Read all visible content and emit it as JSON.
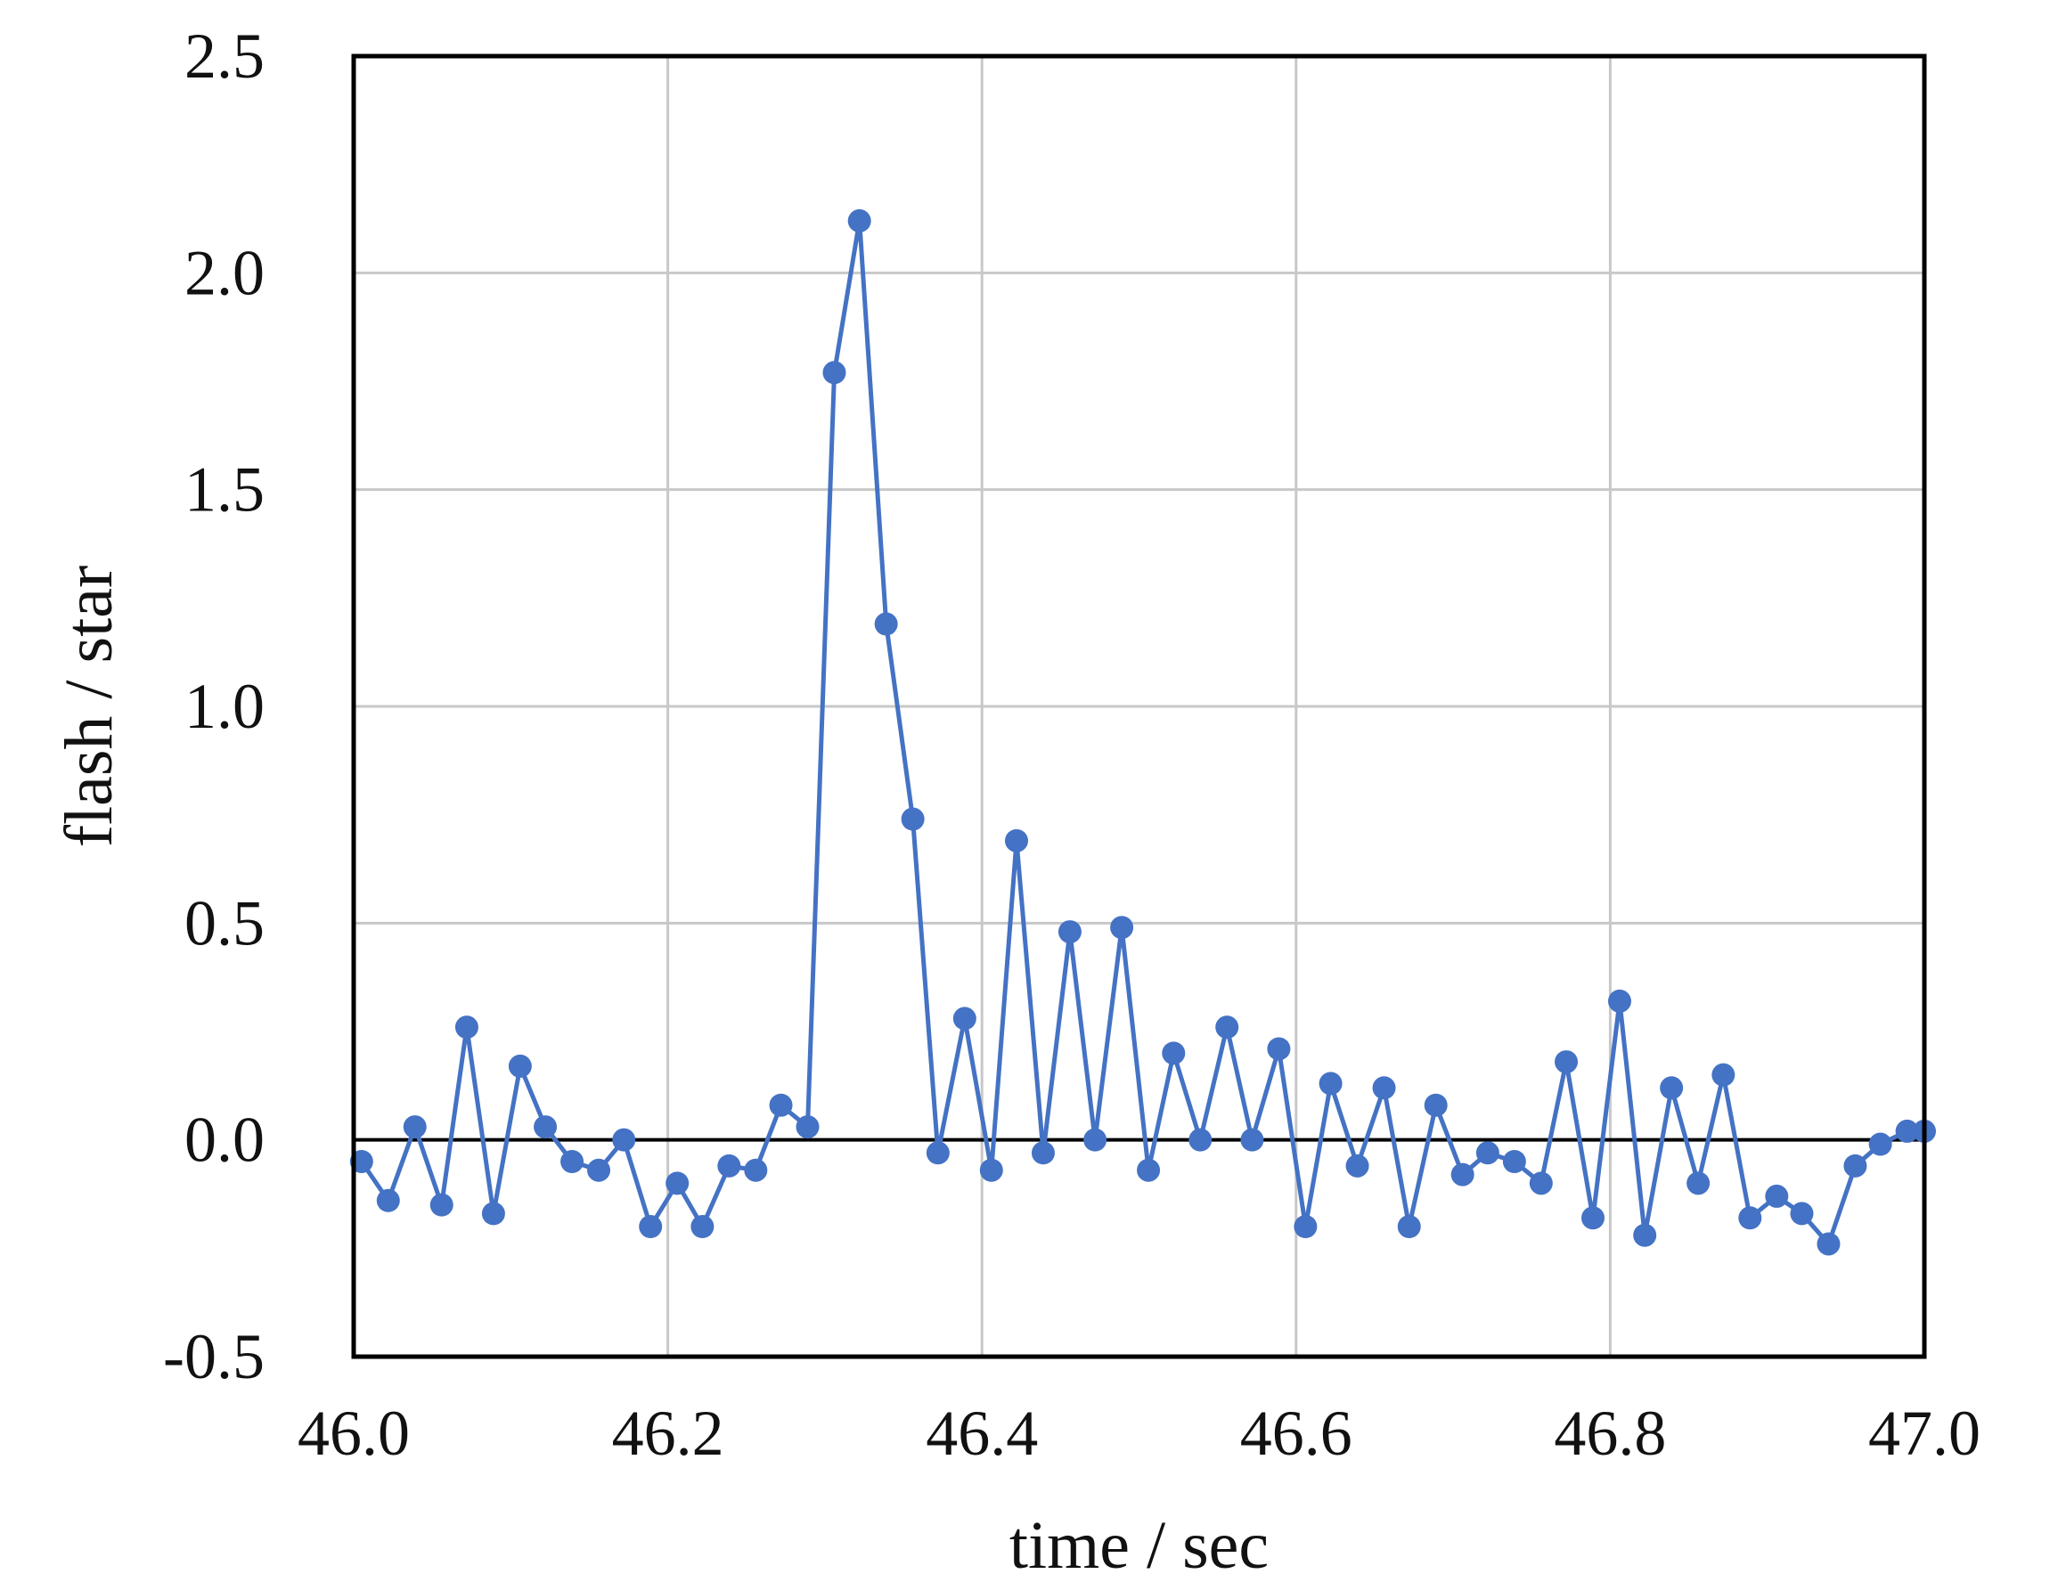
{
  "chart_data": {
    "type": "line",
    "xlabel": "time / sec",
    "ylabel": "flash / star",
    "xlim": [
      46.0,
      47.0
    ],
    "ylim": [
      -0.5,
      2.5
    ],
    "xticks": [
      46.0,
      46.2,
      46.4,
      46.6,
      46.8,
      47.0
    ],
    "xtick_labels": [
      "46.0",
      "46.2",
      "46.4",
      "46.6",
      "46.8",
      "47.0"
    ],
    "yticks": [
      -0.5,
      0.0,
      0.5,
      1.0,
      1.5,
      2.0,
      2.5
    ],
    "ytick_labels": [
      "-0.5",
      "0.0",
      "0.5",
      "1.0",
      "1.5",
      "2.0",
      "2.5"
    ],
    "grid": true,
    "zero_line": true,
    "series": [
      {
        "color": "#4472C4",
        "marker": "circle",
        "x": [
          46.005,
          46.022,
          46.039,
          46.056,
          46.072,
          46.089,
          46.106,
          46.122,
          46.139,
          46.156,
          46.172,
          46.189,
          46.206,
          46.222,
          46.239,
          46.256,
          46.272,
          46.289,
          46.306,
          46.322,
          46.339,
          46.356,
          46.372,
          46.389,
          46.406,
          46.422,
          46.439,
          46.456,
          46.472,
          46.489,
          46.506,
          46.522,
          46.539,
          46.556,
          46.572,
          46.589,
          46.606,
          46.622,
          46.639,
          46.656,
          46.672,
          46.689,
          46.706,
          46.722,
          46.739,
          46.756,
          46.772,
          46.789,
          46.806,
          46.822,
          46.839,
          46.856,
          46.872,
          46.889,
          46.906,
          46.922,
          46.939,
          46.956,
          46.972,
          46.989,
          47.0
        ],
        "y": [
          -0.05,
          -0.14,
          0.03,
          -0.15,
          0.26,
          -0.17,
          0.17,
          0.03,
          -0.05,
          -0.07,
          0.0,
          -0.2,
          -0.1,
          -0.2,
          -0.06,
          -0.07,
          0.08,
          0.03,
          1.77,
          2.12,
          1.19,
          0.74,
          -0.03,
          0.28,
          -0.07,
          0.69,
          -0.03,
          0.48,
          0.0,
          0.49,
          -0.07,
          0.2,
          0.0,
          0.26,
          0.0,
          0.21,
          -0.2,
          0.13,
          -0.06,
          0.12,
          -0.2,
          0.08,
          -0.08,
          -0.03,
          -0.05,
          -0.1,
          0.18,
          -0.18,
          0.32,
          -0.22,
          0.12,
          -0.1,
          0.15,
          -0.18,
          -0.13,
          -0.17,
          -0.24,
          -0.06,
          -0.01,
          0.02,
          0.02
        ]
      }
    ]
  }
}
